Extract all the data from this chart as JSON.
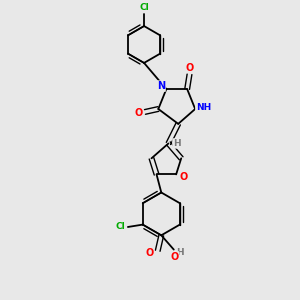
{
  "background_color": "#e8e8e8",
  "bond_color": "#000000",
  "atom_colors": {
    "N": "#0000ff",
    "O": "#ff0000",
    "Cl": "#00aa00",
    "H": "#777777",
    "C": "#000000"
  }
}
